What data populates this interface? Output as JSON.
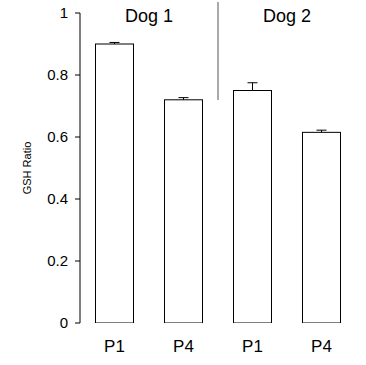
{
  "chart_data": {
    "type": "bar",
    "y_label": "GSH Ratio",
    "annotations": [
      "Dog 1",
      "Dog 2"
    ],
    "categories": [
      "P1",
      "P4",
      "P1",
      "P4"
    ],
    "values": [
      0.9,
      0.72,
      0.75,
      0.615
    ],
    "errors": [
      0.005,
      0.007,
      0.025,
      0.007
    ],
    "color": "#ffffff",
    "ylim": [
      0,
      1
    ],
    "yticks": [
      0,
      0.2,
      0.4,
      0.6,
      0.8,
      1
    ],
    "grid": false
  }
}
